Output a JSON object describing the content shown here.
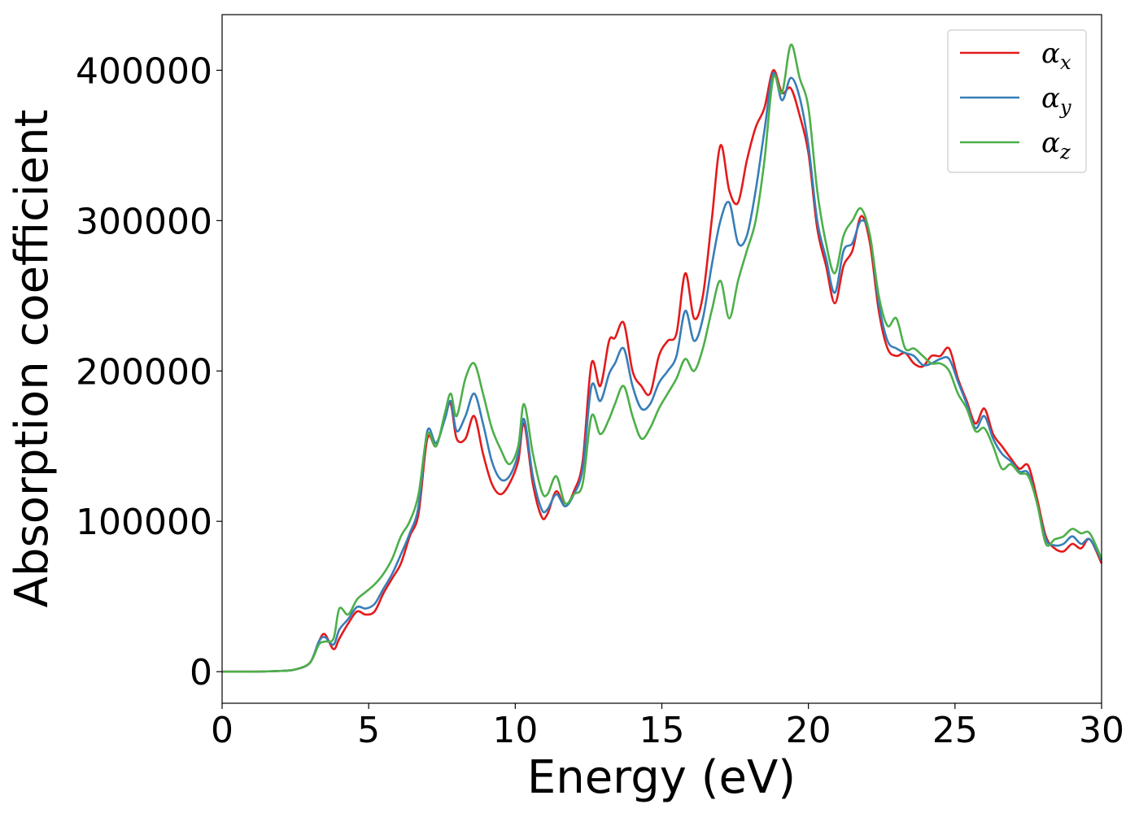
{
  "chart_data": {
    "type": "line",
    "title": "",
    "xlabel": "Energy (eV)",
    "ylabel": "Absorption coefficient",
    "xlim": [
      0,
      30
    ],
    "ylim": [
      -21000,
      437000
    ],
    "xticks": [
      0,
      5,
      10,
      15,
      20,
      25,
      30
    ],
    "yticks": [
      0,
      100000,
      200000,
      300000,
      400000
    ],
    "xtick_labels": [
      "0",
      "5",
      "10",
      "15",
      "20",
      "25",
      "30"
    ],
    "ytick_labels": [
      "0",
      "100000",
      "200000",
      "300000",
      "400000"
    ],
    "grid": false,
    "legend_position": "top-right",
    "x": [
      0,
      1,
      2,
      2.5,
      3,
      3.3,
      3.5,
      3.8,
      4.0,
      4.3,
      4.6,
      4.9,
      5.2,
      5.5,
      5.8,
      6.1,
      6.4,
      6.7,
      7.0,
      7.3,
      7.6,
      7.8,
      8.0,
      8.3,
      8.6,
      8.9,
      9.2,
      9.5,
      9.8,
      10.1,
      10.3,
      10.6,
      10.9,
      11.1,
      11.4,
      11.7,
      12.0,
      12.3,
      12.6,
      12.9,
      13.2,
      13.4,
      13.7,
      14.0,
      14.3,
      14.6,
      14.9,
      15.2,
      15.5,
      15.8,
      16.1,
      16.4,
      16.7,
      17.0,
      17.3,
      17.6,
      17.9,
      18.2,
      18.5,
      18.8,
      19.1,
      19.4,
      19.7,
      20.0,
      20.3,
      20.6,
      20.9,
      21.2,
      21.5,
      21.8,
      22.1,
      22.4,
      22.7,
      23.0,
      23.3,
      23.6,
      23.9,
      24.2,
      24.5,
      24.8,
      25.1,
      25.4,
      25.7,
      26.0,
      26.3,
      26.6,
      26.9,
      27.2,
      27.5,
      27.8,
      28.1,
      28.4,
      28.7,
      29.0,
      29.3,
      29.6,
      30.0
    ],
    "series": [
      {
        "name": "α",
        "subscript": "x",
        "color": "#e41a1c",
        "values": [
          0,
          0,
          500,
          1500,
          6000,
          20000,
          25000,
          15000,
          22000,
          32000,
          40000,
          38000,
          40000,
          52000,
          62000,
          72000,
          90000,
          105000,
          155000,
          150000,
          170000,
          178000,
          155000,
          155000,
          170000,
          145000,
          125000,
          118000,
          125000,
          140000,
          165000,
          125000,
          103000,
          105000,
          120000,
          110000,
          120000,
          140000,
          205000,
          190000,
          220000,
          222000,
          232000,
          200000,
          190000,
          185000,
          210000,
          220000,
          225000,
          265000,
          235000,
          250000,
          300000,
          350000,
          320000,
          312000,
          340000,
          362000,
          375000,
          400000,
          385000,
          388000,
          370000,
          345000,
          295000,
          270000,
          245000,
          270000,
          280000,
          303000,
          285000,
          240000,
          215000,
          210000,
          212000,
          205000,
          203000,
          210000,
          210000,
          215000,
          195000,
          180000,
          165000,
          175000,
          158000,
          150000,
          142000,
          135000,
          137000,
          115000,
          90000,
          82000,
          80000,
          85000,
          82000,
          88000,
          72000
        ]
      },
      {
        "name": "α",
        "subscript": "y",
        "color": "#377eb8",
        "values": [
          0,
          0,
          500,
          1500,
          6000,
          20000,
          23000,
          18000,
          28000,
          35000,
          43000,
          42000,
          45000,
          55000,
          65000,
          78000,
          92000,
          110000,
          160000,
          152000,
          168000,
          180000,
          160000,
          170000,
          185000,
          165000,
          140000,
          128000,
          130000,
          145000,
          168000,
          130000,
          108000,
          108000,
          118000,
          110000,
          118000,
          135000,
          190000,
          180000,
          198000,
          205000,
          215000,
          190000,
          175000,
          178000,
          192000,
          200000,
          210000,
          240000,
          220000,
          235000,
          270000,
          300000,
          312000,
          285000,
          290000,
          320000,
          360000,
          398000,
          380000,
          395000,
          382000,
          350000,
          300000,
          275000,
          252000,
          280000,
          285000,
          300000,
          290000,
          245000,
          220000,
          215000,
          212000,
          210000,
          204000,
          205000,
          208000,
          208000,
          193000,
          178000,
          162000,
          170000,
          155000,
          145000,
          140000,
          133000,
          132000,
          112000,
          88000,
          84000,
          85000,
          90000,
          85000,
          88000,
          74000
        ]
      },
      {
        "name": "α",
        "subscript": "z",
        "color": "#4daf4a",
        "values": [
          0,
          0,
          500,
          1500,
          6000,
          18000,
          20000,
          22000,
          42000,
          38000,
          48000,
          53000,
          58000,
          65000,
          75000,
          90000,
          100000,
          118000,
          158000,
          150000,
          172000,
          185000,
          170000,
          195000,
          205000,
          185000,
          162000,
          148000,
          138000,
          150000,
          178000,
          145000,
          120000,
          118000,
          130000,
          112000,
          118000,
          125000,
          170000,
          158000,
          168000,
          178000,
          190000,
          170000,
          155000,
          162000,
          175000,
          185000,
          195000,
          208000,
          200000,
          215000,
          240000,
          260000,
          235000,
          260000,
          280000,
          300000,
          340000,
          395000,
          385000,
          417000,
          395000,
          375000,
          320000,
          285000,
          265000,
          290000,
          300000,
          308000,
          290000,
          250000,
          230000,
          235000,
          215000,
          215000,
          210000,
          205000,
          205000,
          200000,
          185000,
          175000,
          160000,
          162000,
          150000,
          135000,
          138000,
          132000,
          130000,
          112000,
          85000,
          88000,
          90000,
          95000,
          92000,
          92000,
          75000
        ]
      }
    ]
  }
}
